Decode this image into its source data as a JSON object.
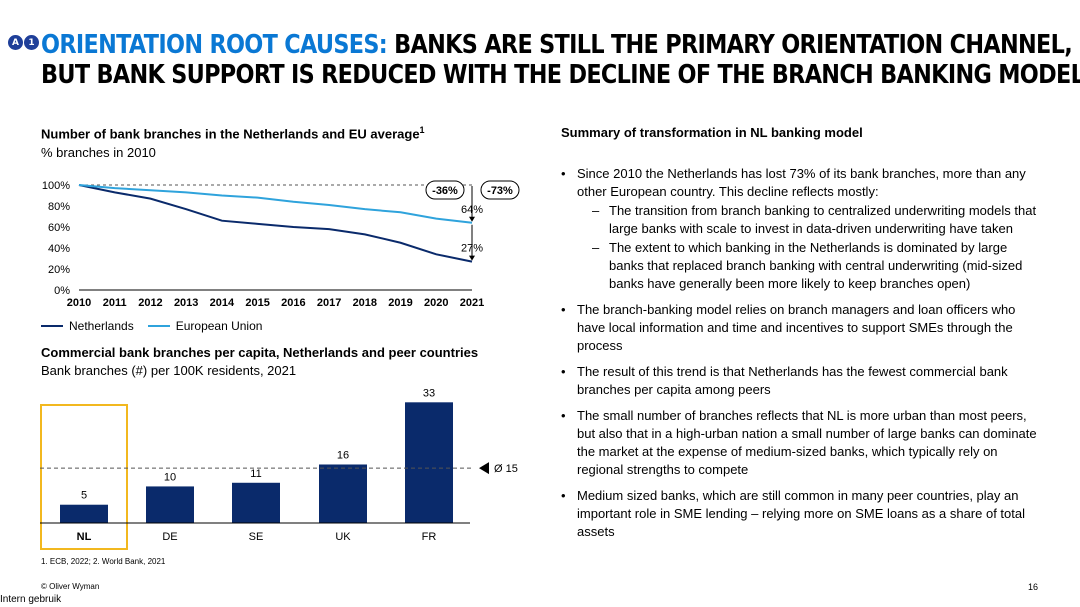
{
  "badges": [
    "A",
    "1"
  ],
  "title": {
    "accent": "ORIENTATION ROOT CAUSES:",
    "line1": " BANKS ARE STILL THE PRIMARY ORIENTATION CHANNEL,",
    "line2": "BUT BANK SUPPORT IS REDUCED WITH THE DECLINE OF THE BRANCH BANKING MODEL"
  },
  "line_chart": {
    "title": "Number of bank branches in the Netherlands and EU average",
    "title_sup": "1",
    "subtitle": "% branches in 2010",
    "legend": [
      "Netherlands",
      "European Union"
    ]
  },
  "bar_chart": {
    "title": "Commercial bank branches per capita, Netherlands and peer countries",
    "subtitle": "Bank branches (#) per 100K residents, 2021"
  },
  "chart_data": [
    {
      "type": "line",
      "x": [
        2010,
        2011,
        2012,
        2013,
        2014,
        2015,
        2016,
        2017,
        2018,
        2019,
        2020,
        2021
      ],
      "x_labels": [
        "2010",
        "2011",
        "2012",
        "2013",
        "2014",
        "2015",
        "2016",
        "2017",
        "2018",
        "2019",
        "2020",
        "2021"
      ],
      "series": [
        {
          "name": "Netherlands",
          "color": "#0a2a6b",
          "values": [
            100,
            93,
            87,
            77,
            66,
            63,
            60,
            58,
            53,
            45,
            34,
            27
          ]
        },
        {
          "name": "European Union",
          "color": "#2fa3dc",
          "values": [
            100,
            97,
            95,
            93,
            90,
            88,
            84,
            81,
            77,
            74,
            68,
            64
          ]
        }
      ],
      "y_ticks": [
        "0%",
        "20%",
        "40%",
        "60%",
        "80%",
        "100%"
      ],
      "ylim": [
        0,
        100
      ],
      "reference_line": 100,
      "end_labels": {
        "eu": "64%",
        "nl": "27%"
      },
      "annotations": [
        "-36%",
        "-73%"
      ]
    },
    {
      "type": "bar",
      "categories": [
        "NL",
        "DE",
        "SE",
        "UK",
        "FR"
      ],
      "values": [
        5,
        10,
        11,
        16,
        33
      ],
      "bar_color": "#0a2a6b",
      "average": 15,
      "average_label": "Ø 15",
      "highlight": "NL",
      "highlight_color": "#f2b81f",
      "ylim": [
        0,
        35
      ]
    }
  ],
  "summary": {
    "title": "Summary of transformation in NL banking model",
    "bullets": [
      {
        "text": "Since 2010 the Netherlands has lost 73% of its bank branches, more than any other European country. This decline reflects mostly:",
        "subs": [
          "The transition from branch banking to centralized underwriting models that large banks with scale to invest in data-driven underwriting have taken",
          "The extent to which banking in the Netherlands is dominated by large banks that replaced branch banking with central underwriting (mid-sized banks have generally been more likely to keep branches open)"
        ]
      },
      {
        "text": "The branch-banking model relies on branch managers and loan officers who have local information and time and incentives to support SMEs through the process",
        "subs": []
      },
      {
        "text": "The result of this trend is that Netherlands has the fewest commercial bank branches per capita among peers",
        "subs": []
      },
      {
        "text": "The small number of branches reflects that NL is more urban than most peers, but also that in a high-urban nation a small number of large banks can dominate the market at the expense of medium-sized banks, which typically rely on regional strengths to compete",
        "subs": []
      },
      {
        "text": "Medium sized banks, which are still common in many peer countries, play an important role in SME lending – relying more on SME loans as a share of total assets",
        "subs": []
      }
    ]
  },
  "footer": {
    "footnote": "1.  ECB, 2022; 2. World Bank, 2021",
    "copyright": "© Oliver Wyman",
    "page": "16",
    "intern": "Intern gebruik"
  }
}
